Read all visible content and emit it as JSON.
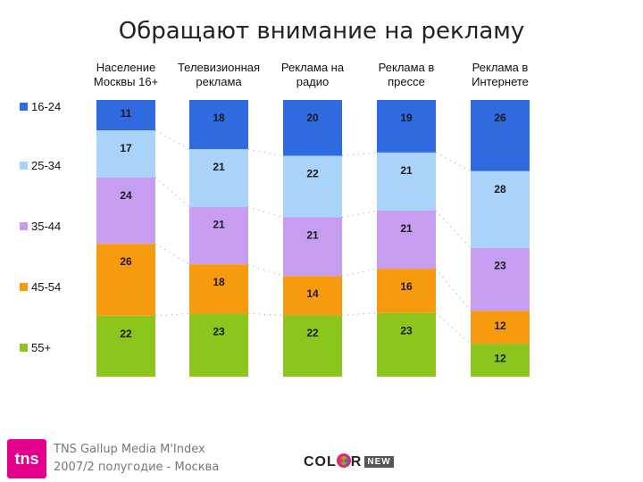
{
  "title": "Обращают внимание на рекламу",
  "footer": {
    "line1": "TNS Gallup Media M'Index",
    "line2": "2007/2 полугодие - Москва",
    "tns_logo_text": "tns",
    "color_logo_prefix": "COL",
    "color_logo_suffix": "R",
    "color_logo_badge": "NEW"
  },
  "chart_data": {
    "type": "bar",
    "stacked": true,
    "percent": true,
    "title": "Обращают внимание на рекламу",
    "categories": [
      [
        "Население",
        "Москвы 16+"
      ],
      [
        "Телевизионная",
        "реклама"
      ],
      [
        "Реклама на",
        "радио"
      ],
      [
        "Реклама в",
        "прессе"
      ],
      [
        "Реклама в",
        "Интернете"
      ]
    ],
    "series": [
      {
        "name": "16-24",
        "color": "#2f6ae0",
        "values": [
          11,
          18,
          20,
          19,
          26
        ]
      },
      {
        "name": "25-34",
        "color": "#a9d3f8",
        "values": [
          17,
          21,
          22,
          21,
          28
        ]
      },
      {
        "name": "35-44",
        "color": "#c79df2",
        "values": [
          24,
          21,
          21,
          21,
          23
        ]
      },
      {
        "name": "45-54",
        "color": "#f79a0d",
        "values": [
          26,
          18,
          14,
          16,
          12
        ]
      },
      {
        "name": "55+",
        "color": "#8cc51c",
        "values": [
          22,
          23,
          22,
          23,
          12
        ]
      }
    ],
    "legend_position": "left",
    "grid": false
  }
}
